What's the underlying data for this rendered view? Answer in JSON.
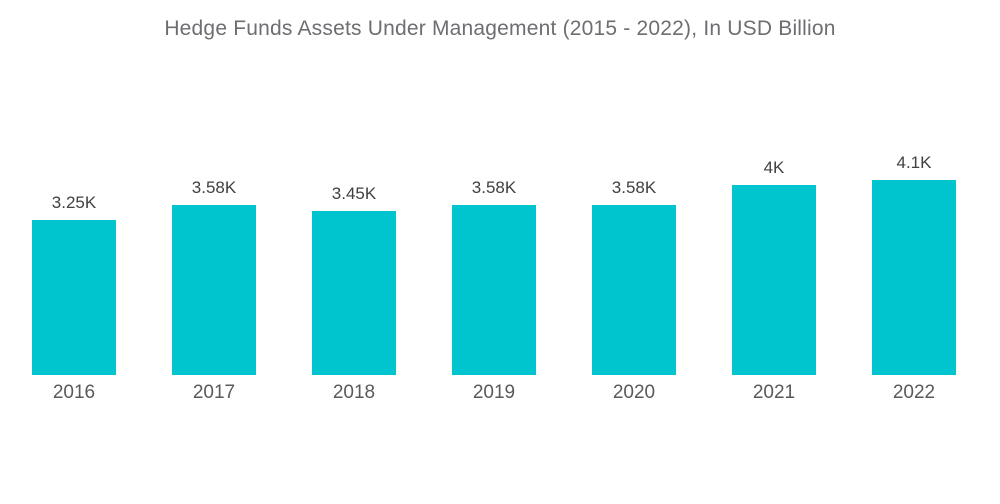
{
  "chart": {
    "title": "Hedge Funds Assets Under Management (2015 - 2022), In USD Billion"
  },
  "colors": {
    "bar": "#00c5ce",
    "title_text": "#6d6e71",
    "value_label_text": "#414042",
    "axis_label_text": "#58595b",
    "background": "#ffffff"
  },
  "chart_data": {
    "type": "bar",
    "title": "Hedge Funds Assets Under Management (2015 - 2022), In USD Billion",
    "unit": "USD Billion",
    "categories": [
      "2016",
      "2017",
      "2018",
      "2019",
      "2020",
      "2021",
      "2022"
    ],
    "values": [
      3250,
      3580,
      3450,
      3580,
      3580,
      4000,
      4100
    ],
    "value_labels": [
      "3.25K",
      "3.58K",
      "3.45K",
      "3.58K",
      "3.58K",
      "4K",
      "4.1K"
    ],
    "xlabel": "",
    "ylabel": "",
    "ylim": [
      0,
      4100
    ],
    "grid": false,
    "legend": false,
    "y_axis_visible": false,
    "bar_color": "#00c5ce"
  }
}
